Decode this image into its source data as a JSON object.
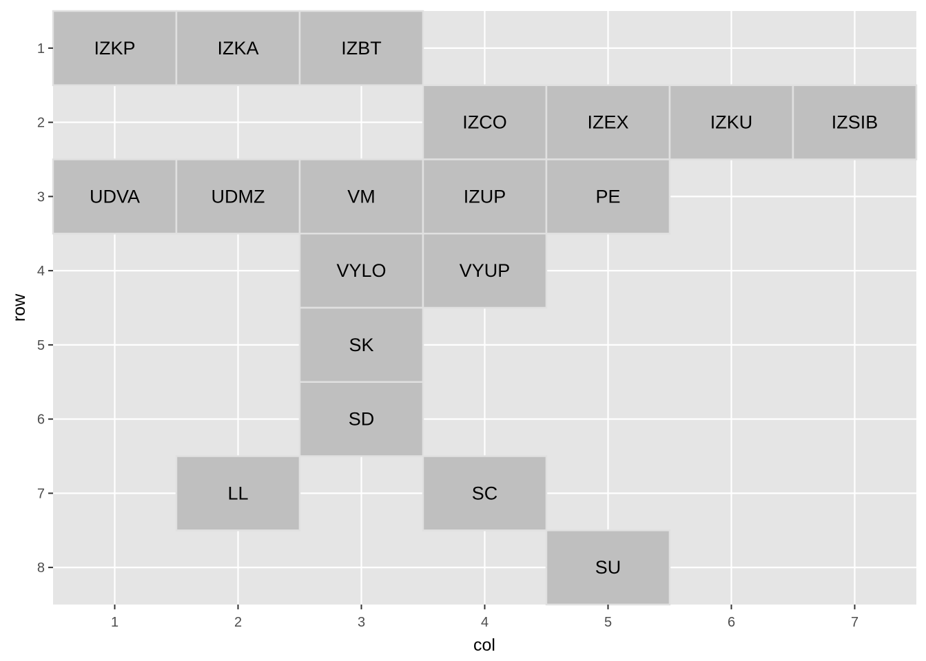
{
  "chart_data": {
    "type": "heatmap",
    "xlabel": "col",
    "ylabel": "row",
    "x_ticks": [
      1,
      2,
      3,
      4,
      5,
      6,
      7
    ],
    "y_ticks": [
      1,
      2,
      3,
      4,
      5,
      6,
      7,
      8
    ],
    "xlim": [
      0.5,
      7.5
    ],
    "ylim": [
      0.5,
      8.5
    ],
    "y_reversed": true,
    "grid": true,
    "colors": {
      "panel": "#e5e5e5",
      "grid": "#ffffff",
      "tile": "#bfbfbf",
      "tile_border": "#e0e0e0"
    },
    "tiles": [
      {
        "label": "IZKP",
        "col": 1,
        "row": 1
      },
      {
        "label": "IZKA",
        "col": 2,
        "row": 1
      },
      {
        "label": "IZBT",
        "col": 3,
        "row": 1
      },
      {
        "label": "IZCO",
        "col": 4,
        "row": 2
      },
      {
        "label": "IZEX",
        "col": 5,
        "row": 2
      },
      {
        "label": "IZKU",
        "col": 6,
        "row": 2
      },
      {
        "label": "IZSIB",
        "col": 7,
        "row": 2
      },
      {
        "label": "UDVA",
        "col": 1,
        "row": 3
      },
      {
        "label": "UDMZ",
        "col": 2,
        "row": 3
      },
      {
        "label": "VM",
        "col": 3,
        "row": 3
      },
      {
        "label": "IZUP",
        "col": 4,
        "row": 3
      },
      {
        "label": "PE",
        "col": 5,
        "row": 3
      },
      {
        "label": "VYLO",
        "col": 3,
        "row": 4
      },
      {
        "label": "VYUP",
        "col": 4,
        "row": 4
      },
      {
        "label": "SK",
        "col": 3,
        "row": 5
      },
      {
        "label": "SD",
        "col": 3,
        "row": 6
      },
      {
        "label": "LL",
        "col": 2,
        "row": 7
      },
      {
        "label": "SC",
        "col": 4,
        "row": 7
      },
      {
        "label": "SU",
        "col": 5,
        "row": 8
      }
    ]
  }
}
